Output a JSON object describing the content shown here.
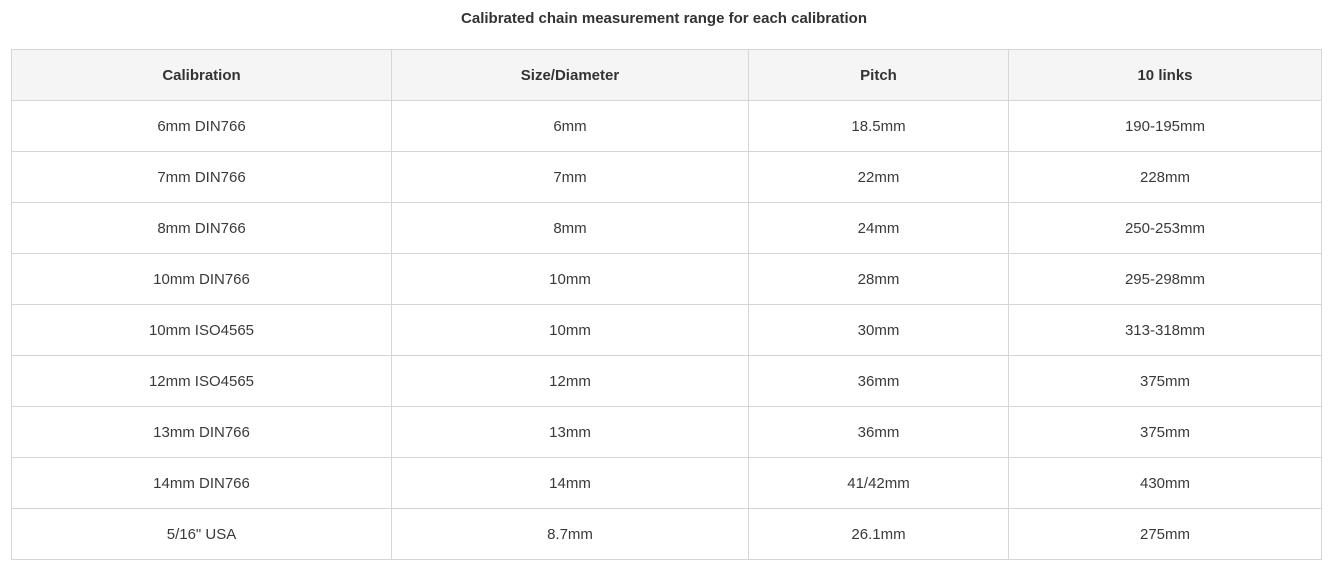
{
  "caption": "Calibrated chain measurement range for each calibration",
  "table": {
    "headers": [
      "Calibration",
      "Size/Diameter",
      "Pitch",
      "10 links"
    ],
    "rows": [
      [
        "6mm DIN766",
        "6mm",
        "18.5mm",
        "190-195mm"
      ],
      [
        "7mm DIN766",
        "7mm",
        "22mm",
        "228mm"
      ],
      [
        "8mm DIN766",
        "8mm",
        "24mm",
        "250-253mm"
      ],
      [
        "10mm DIN766",
        "10mm",
        "28mm",
        "295-298mm"
      ],
      [
        "10mm ISO4565",
        "10mm",
        "30mm",
        "313-318mm"
      ],
      [
        "12mm ISO4565",
        "12mm",
        "36mm",
        "375mm"
      ],
      [
        "13mm DIN766",
        "13mm",
        "36mm",
        "375mm"
      ],
      [
        "14mm DIN766",
        "14mm",
        "41/42mm",
        "430mm"
      ],
      [
        "5/16\" USA",
        "8.7mm",
        "26.1mm",
        "275mm"
      ]
    ]
  }
}
